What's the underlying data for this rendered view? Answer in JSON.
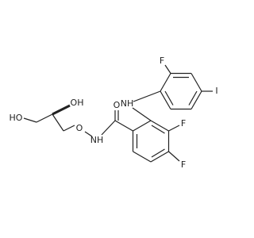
{
  "nodes": [
    {
      "label": "HO"
    },
    {
      "label": "OH"
    },
    {
      "label": "O"
    },
    {
      "label": "NH"
    },
    {
      "label": "O"
    },
    {
      "label": "NH"
    },
    {
      "label": "F"
    },
    {
      "label": "I"
    },
    {
      "label": "F"
    },
    {
      "label": "F"
    }
  ]
}
